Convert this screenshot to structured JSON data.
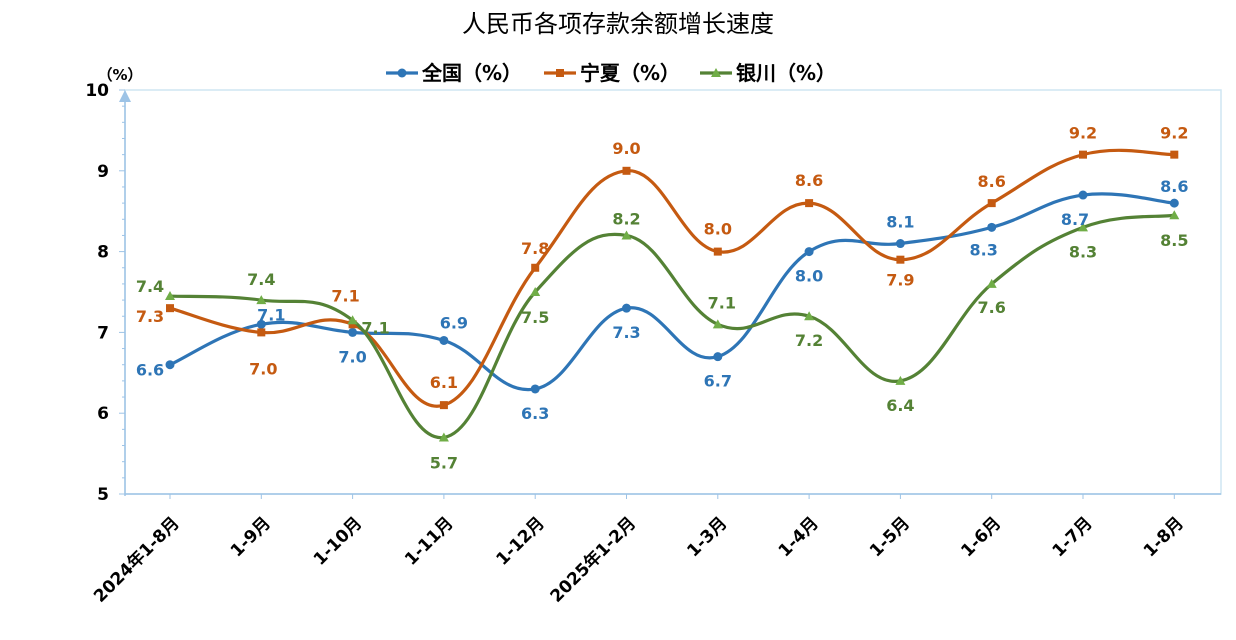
{
  "chart_data": {
    "type": "line",
    "title": "人民币各项存款余额增长速度",
    "ylabel": "（%）",
    "xlabel": "",
    "ylim": [
      5,
      10
    ],
    "yticks": [
      "5",
      "6",
      "7",
      "8",
      "9",
      "10"
    ],
    "categories": [
      "2024年1-8月",
      "1-9月",
      "1-10月",
      "1-11月",
      "1-12月",
      "2025年1-2月",
      "1-3月",
      "1-4月",
      "1-5月",
      "1-6月",
      "1-7月",
      "1-8月"
    ],
    "series": [
      {
        "name": "全国（%）",
        "color": "#2e75b6",
        "marker": "circle",
        "values": [
          6.6,
          7.1,
          7.0,
          6.9,
          6.3,
          7.3,
          6.7,
          8.0,
          8.1,
          8.3,
          8.7,
          8.6
        ],
        "labels": [
          "6.6",
          "7.1",
          "7.0",
          "6.9",
          "6.3",
          "7.3",
          "6.7",
          "8.0",
          "8.1",
          "8.3",
          "8.7",
          "8.6"
        ]
      },
      {
        "name": "宁夏（%）",
        "color": "#c55a11",
        "marker": "square",
        "values": [
          7.3,
          7.0,
          7.1,
          6.1,
          7.8,
          9.0,
          8.0,
          8.6,
          7.9,
          8.6,
          9.2,
          9.2
        ],
        "labels": [
          "7.3",
          "7.0",
          "7.1",
          "6.1",
          "7.8",
          "9.0",
          "8.0",
          "8.6",
          "7.9",
          "8.6",
          "9.2",
          "9.2"
        ]
      },
      {
        "name": "银川（%）",
        "color": "#548235",
        "marker": "triangle",
        "values": [
          7.45,
          7.4,
          7.15,
          5.7,
          7.5,
          8.2,
          7.1,
          7.2,
          6.4,
          7.6,
          8.3,
          8.45
        ],
        "labels": [
          "7.4",
          "7.4",
          "7.1",
          "5.7",
          "7.5",
          "8.2",
          "7.1",
          "7.2",
          "6.4",
          "7.6",
          "8.3",
          "8.5"
        ]
      }
    ],
    "legend_position": "top-center"
  }
}
